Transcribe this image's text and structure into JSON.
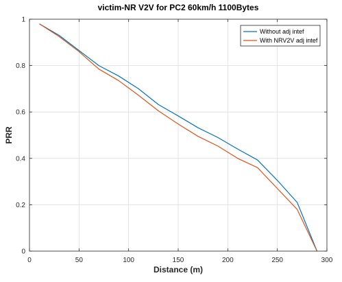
{
  "chart_data": {
    "type": "line",
    "title": "victim-NR V2V for PC2 60km/h 1100Bytes",
    "xlabel": "Distance (m)",
    "ylabel": "PRR",
    "xlim": [
      0,
      300
    ],
    "ylim": [
      0,
      1
    ],
    "xticks": [
      0,
      50,
      100,
      150,
      200,
      250,
      300
    ],
    "yticks": [
      0,
      0.2,
      0.4,
      0.6,
      0.8,
      1
    ],
    "xtick_labels": [
      "0",
      "50",
      "100",
      "150",
      "200",
      "250",
      "300"
    ],
    "ytick_labels": [
      "0",
      "0.2",
      "0.4",
      "0.6",
      "0.8",
      "1"
    ],
    "grid": true,
    "legend_position": "top-right",
    "x": [
      10,
      30,
      50,
      70,
      90,
      110,
      130,
      150,
      170,
      190,
      210,
      230,
      250,
      270,
      290
    ],
    "series": [
      {
        "name": "Without adj intef",
        "color": "#0072BD",
        "values": [
          0.98,
          0.93,
          0.865,
          0.8,
          0.755,
          0.7,
          0.632,
          0.583,
          0.532,
          0.49,
          0.44,
          0.393,
          0.305,
          0.21,
          0.0
        ]
      },
      {
        "name": "With NRV2V adj intef",
        "color": "#D95319",
        "values": [
          0.98,
          0.925,
          0.86,
          0.785,
          0.735,
          0.672,
          0.605,
          0.548,
          0.495,
          0.453,
          0.4,
          0.36,
          0.27,
          0.18,
          0.0
        ]
      }
    ]
  }
}
